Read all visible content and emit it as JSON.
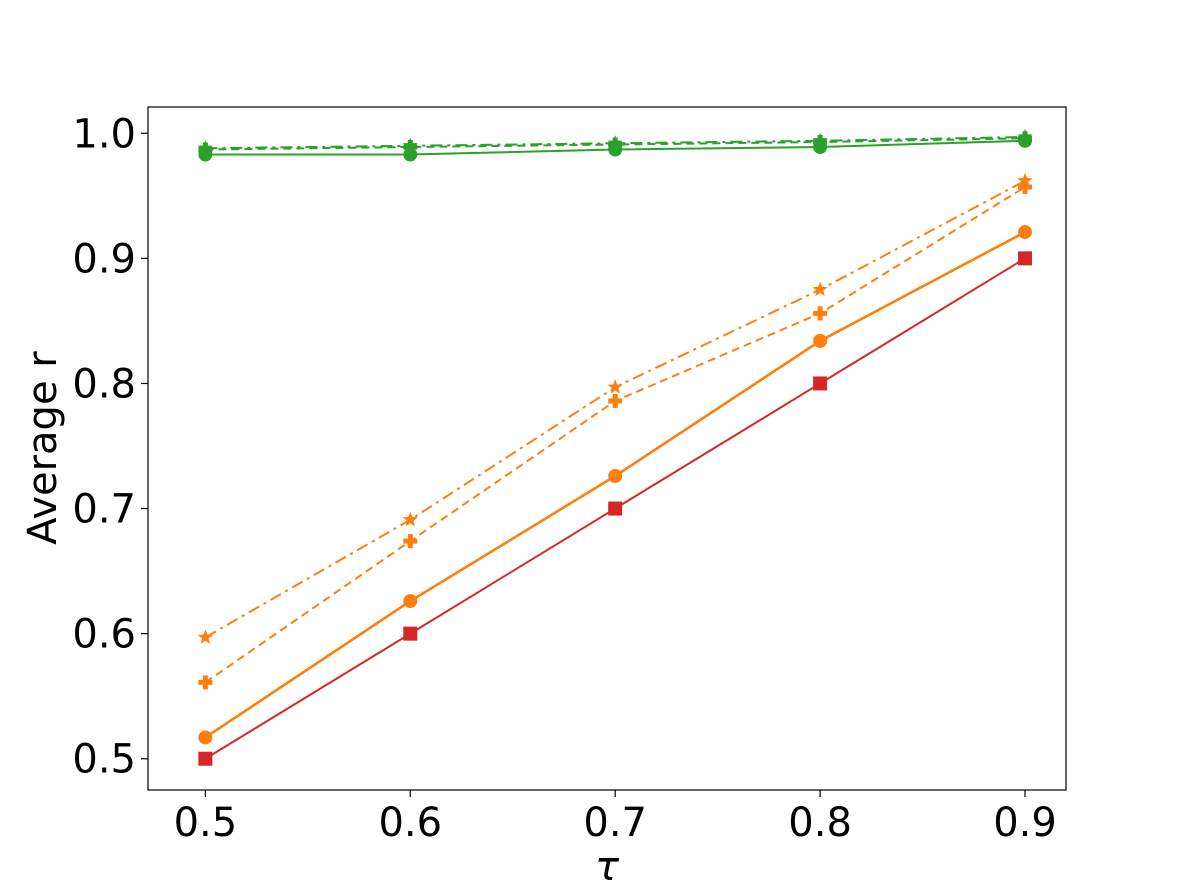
{
  "chart_data": {
    "type": "line",
    "xlabel": "τ",
    "ylabel": "Average r",
    "x": [
      0.5,
      0.6,
      0.7,
      0.8,
      0.9
    ],
    "xticks": [
      "0.5",
      "0.6",
      "0.7",
      "0.8",
      "0.9"
    ],
    "yticks": [
      "0.5",
      "0.6",
      "0.7",
      "0.8",
      "0.9",
      "1.0"
    ],
    "ytick_values": [
      0.5,
      0.6,
      0.7,
      0.8,
      0.9,
      1.0
    ],
    "xlim": [
      0.472,
      0.92
    ],
    "ylim": [
      0.475,
      1.021
    ],
    "grid": false,
    "series": [
      {
        "color": "#2ca02c",
        "marker": "plus",
        "style": "dashed",
        "values": [
          0.987,
          0.989,
          0.991,
          0.993,
          0.996
        ]
      },
      {
        "color": "#2ca02c",
        "marker": "star",
        "style": "dashdot",
        "values": [
          0.988,
          0.99,
          0.992,
          0.994,
          0.997
        ]
      },
      {
        "color": "#2ca02c",
        "marker": "circle",
        "style": "solid",
        "values": [
          0.983,
          0.983,
          0.987,
          0.989,
          0.994
        ]
      },
      {
        "color": "#d62728",
        "marker": "square",
        "style": "solid",
        "values": [
          0.5,
          0.6,
          0.7,
          0.8,
          0.9
        ]
      },
      {
        "color": "#ff7f0e",
        "marker": "circle",
        "style": "solid",
        "values": [
          0.517,
          0.626,
          0.726,
          0.834,
          0.921
        ]
      },
      {
        "color": "#ff7f0e",
        "marker": "plus",
        "style": "dashed",
        "values": [
          0.561,
          0.674,
          0.786,
          0.856,
          0.957
        ]
      },
      {
        "color": "#ff7f0e",
        "marker": "star",
        "style": "dashdot",
        "values": [
          0.597,
          0.691,
          0.797,
          0.875,
          0.962
        ]
      }
    ]
  }
}
